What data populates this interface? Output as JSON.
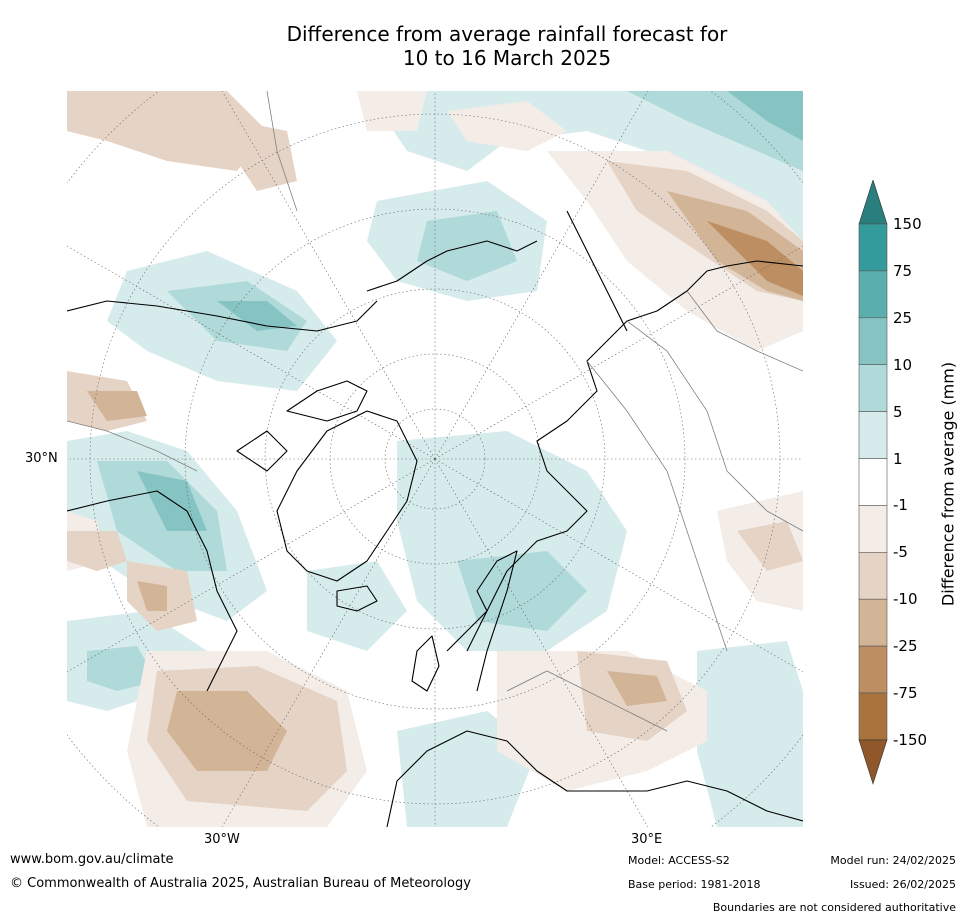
{
  "title": {
    "line1": "Difference from average rainfall forecast for",
    "line2": "10 to 16 March 2025"
  },
  "map": {
    "projection": "north-polar-stereographic",
    "lon_labels": [
      "30°W",
      "30°E"
    ],
    "lat_labels": [
      "30°N"
    ]
  },
  "colorbar": {
    "label": "Difference from average (mm)",
    "ticks": [
      "150",
      "75",
      "25",
      "10",
      "5",
      "1",
      "-1",
      "-5",
      "-10",
      "-25",
      "-75",
      "-150"
    ],
    "colors_top_to_bottom": [
      "#2b7e7e",
      "#339b9b",
      "#5aaeae",
      "#86c3c3",
      "#b0d9d9",
      "#d6ebeb",
      "#ffffff",
      "#f4ece7",
      "#e5d3c5",
      "#d2b496",
      "#bc8e62",
      "#a9733d",
      "#90582a"
    ]
  },
  "footer": {
    "url": "www.bom.gov.au/climate",
    "copyright": "© Commonwealth of Australia 2025, Australian Bureau of Meteorology",
    "model": "Model: ACCESS-S2",
    "base_period": "Base period: 1981-2018",
    "model_run": "Model run: 24/02/2025",
    "issued": "Issued: 26/02/2025",
    "disclaimer": "Boundaries are not considered authoritative"
  }
}
